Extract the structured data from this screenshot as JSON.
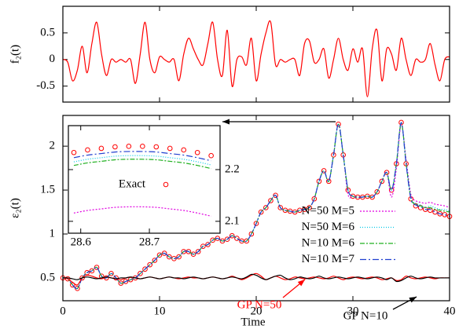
{
  "chart_data": [
    {
      "type": "line",
      "ylabel": "f₂(t)",
      "xlim": [
        0,
        40
      ],
      "ylim": [
        -0.8,
        1.0
      ],
      "yticks": [
        -0.5,
        0,
        0.5
      ],
      "x": [
        0,
        0.5,
        1,
        1.5,
        2,
        2.5,
        3,
        3.5,
        4,
        4.5,
        5,
        5.5,
        6,
        6.5,
        7,
        7.5,
        8,
        8.5,
        9,
        9.5,
        10,
        10.5,
        11,
        11.5,
        12,
        12.5,
        13,
        13.5,
        14,
        14.5,
        15,
        15.5,
        16,
        16.5,
        17,
        17.5,
        18,
        18.5,
        19,
        19.5,
        20,
        20.5,
        21,
        21.5,
        22,
        22.5,
        23,
        23.5,
        24,
        24.5,
        25,
        25.5,
        26,
        26.5,
        27,
        27.5,
        28,
        28.5,
        29,
        29.5,
        30,
        30.5,
        31,
        31.5,
        32,
        32.5,
        33,
        33.5,
        34,
        34.5,
        35,
        35.5,
        36,
        36.5,
        37,
        37.5,
        38,
        38.5,
        39,
        39.5,
        40
      ],
      "series": [
        {
          "color": "#ff0000",
          "values": [
            0,
            -0.05,
            -0.4,
            -0.2,
            0.25,
            -0.25,
            0.3,
            0.7,
            0.1,
            -0.3,
            0,
            -0.05,
            0,
            -0.05,
            0,
            -0.45,
            0.1,
            0.7,
            0,
            -0.25,
            0.05,
            0,
            -0.05,
            0,
            -0.4,
            0.1,
            0.4,
            0.2,
            0,
            -0.1,
            0.3,
            0.7,
            0,
            -0.3,
            0.55,
            -0.5,
            0,
            0.05,
            -0.1,
            0.4,
            -0.4,
            0.1,
            0.5,
            0.7,
            -0.1,
            0,
            -0.05,
            0,
            0,
            -0.3,
            0.3,
            0.35,
            -0.05,
            0,
            0.2,
            -0.35,
            0,
            0.4,
            0,
            -0.2,
            0.2,
            -0.05,
            0.2,
            -0.7,
            0.2,
            0.55,
            -0.4,
            0.2,
            0.1,
            -0.2,
            0.4,
            0,
            -0.3,
            0,
            -0.05,
            0,
            0.3,
            -0.1,
            -0.4,
            0,
            0.05
          ]
        }
      ]
    },
    {
      "type": "line",
      "xlabel": "Time",
      "ylabel": "ε₂(t)",
      "xlim": [
        0,
        40
      ],
      "ylim": [
        0.24,
        2.35
      ],
      "xticks": [
        0,
        10,
        20,
        30,
        40
      ],
      "yticks": [
        0.5,
        1,
        1.5,
        2
      ],
      "x": [
        0,
        0.5,
        1,
        1.5,
        2,
        2.5,
        3,
        3.5,
        4,
        4.5,
        5,
        5.5,
        6,
        6.5,
        7,
        7.5,
        8,
        8.5,
        9,
        9.5,
        10,
        10.5,
        11,
        11.5,
        12,
        12.5,
        13,
        13.5,
        14,
        14.5,
        15,
        15.5,
        16,
        16.5,
        17,
        17.5,
        18,
        18.5,
        19,
        19.5,
        20,
        20.5,
        21,
        21.5,
        22,
        22.5,
        23,
        23.5,
        24,
        24.5,
        25,
        25.5,
        26,
        26.5,
        27,
        27.5,
        28,
        28.5,
        29,
        29.5,
        30,
        30.5,
        31,
        31.5,
        32,
        32.5,
        33,
        33.5,
        34,
        34.5,
        35,
        35.5,
        36,
        36.5,
        37,
        37.5,
        38,
        38.5,
        39,
        39.5,
        40
      ],
      "series": [
        {
          "marker": "circle",
          "color": "#ff0000",
          "values": [
            0.5,
            0.49,
            0.42,
            0.38,
            0.5,
            0.56,
            0.58,
            0.62,
            0.52,
            0.5,
            0.55,
            0.5,
            0.44,
            0.46,
            0.48,
            0.5,
            0.55,
            0.6,
            0.65,
            0.7,
            0.76,
            0.78,
            0.74,
            0.72,
            0.74,
            0.8,
            0.8,
            0.77,
            0.8,
            0.86,
            0.88,
            0.93,
            0.95,
            0.92,
            0.94,
            0.98,
            0.95,
            0.92,
            0.92,
            1.0,
            1.12,
            1.25,
            1.3,
            1.38,
            1.44,
            1.3,
            1.27,
            1.26,
            1.25,
            1.27,
            1.28,
            1.3,
            1.4,
            1.6,
            1.72,
            1.6,
            1.9,
            2.25,
            1.9,
            1.5,
            1.43,
            1.42,
            1.42,
            1.43,
            1.42,
            1.48,
            1.6,
            1.7,
            1.5,
            1.8,
            2.27,
            1.8,
            1.4,
            1.32,
            1.3,
            1.28,
            1.27,
            1.25,
            1.23,
            1.22,
            1.2
          ]
        },
        {
          "name": "N=50 M=5",
          "color": "#e000e0",
          "dash": "2 2",
          "values": [
            0.5,
            0.49,
            0.42,
            0.38,
            0.5,
            0.56,
            0.58,
            0.62,
            0.52,
            0.5,
            0.55,
            0.5,
            0.44,
            0.46,
            0.48,
            0.5,
            0.55,
            0.6,
            0.65,
            0.7,
            0.76,
            0.78,
            0.74,
            0.72,
            0.74,
            0.8,
            0.8,
            0.77,
            0.8,
            0.86,
            0.88,
            0.93,
            0.95,
            0.92,
            0.94,
            0.98,
            0.95,
            0.92,
            0.92,
            1.0,
            1.12,
            1.25,
            1.3,
            1.38,
            1.44,
            1.3,
            1.27,
            1.26,
            1.25,
            1.27,
            1.28,
            1.3,
            1.4,
            1.6,
            1.72,
            1.6,
            1.9,
            2.25,
            1.9,
            1.45,
            1.43,
            1.42,
            1.42,
            1.43,
            1.42,
            1.48,
            1.6,
            1.7,
            1.42,
            1.75,
            2.25,
            1.85,
            1.45,
            1.38,
            1.36,
            1.35,
            1.36,
            1.34,
            1.33,
            1.32,
            1.3
          ]
        },
        {
          "name": "N=50 M=6",
          "color": "#00c8e6",
          "dash": "1 2",
          "values": [
            0.5,
            0.49,
            0.42,
            0.38,
            0.5,
            0.56,
            0.58,
            0.62,
            0.52,
            0.5,
            0.55,
            0.5,
            0.44,
            0.46,
            0.48,
            0.5,
            0.55,
            0.6,
            0.65,
            0.7,
            0.76,
            0.78,
            0.74,
            0.72,
            0.74,
            0.8,
            0.8,
            0.77,
            0.8,
            0.86,
            0.88,
            0.93,
            0.95,
            0.92,
            0.94,
            0.98,
            0.95,
            0.92,
            0.92,
            1.0,
            1.12,
            1.25,
            1.3,
            1.38,
            1.44,
            1.3,
            1.27,
            1.26,
            1.25,
            1.27,
            1.28,
            1.3,
            1.4,
            1.6,
            1.72,
            1.6,
            1.9,
            2.25,
            1.9,
            1.5,
            1.43,
            1.42,
            1.42,
            1.43,
            1.42,
            1.48,
            1.6,
            1.7,
            1.5,
            1.8,
            2.26,
            1.82,
            1.42,
            1.35,
            1.33,
            1.3,
            1.32,
            1.3,
            1.28,
            1.28,
            1.26
          ]
        },
        {
          "name": "N=10 M=6",
          "color": "#20b020",
          "dash": "6 2 2 2",
          "values": [
            0.5,
            0.49,
            0.42,
            0.38,
            0.5,
            0.56,
            0.58,
            0.62,
            0.52,
            0.5,
            0.55,
            0.5,
            0.44,
            0.46,
            0.48,
            0.5,
            0.55,
            0.6,
            0.65,
            0.7,
            0.76,
            0.78,
            0.74,
            0.72,
            0.74,
            0.8,
            0.8,
            0.77,
            0.8,
            0.86,
            0.88,
            0.93,
            0.95,
            0.92,
            0.94,
            0.98,
            0.95,
            0.92,
            0.92,
            1.0,
            1.12,
            1.25,
            1.3,
            1.38,
            1.44,
            1.3,
            1.27,
            1.26,
            1.25,
            1.27,
            1.28,
            1.3,
            1.4,
            1.6,
            1.72,
            1.6,
            1.9,
            2.25,
            1.9,
            1.5,
            1.43,
            1.42,
            1.42,
            1.43,
            1.42,
            1.48,
            1.6,
            1.7,
            1.5,
            1.8,
            2.26,
            1.81,
            1.41,
            1.34,
            1.32,
            1.3,
            1.3,
            1.28,
            1.27,
            1.26,
            1.25
          ]
        },
        {
          "name": "N=10 M=7",
          "color": "#2040d0",
          "dash": "8 3 2 3",
          "values": [
            0.5,
            0.49,
            0.42,
            0.38,
            0.5,
            0.56,
            0.58,
            0.62,
            0.52,
            0.5,
            0.55,
            0.5,
            0.44,
            0.46,
            0.48,
            0.5,
            0.55,
            0.6,
            0.65,
            0.7,
            0.76,
            0.78,
            0.74,
            0.72,
            0.74,
            0.8,
            0.8,
            0.77,
            0.8,
            0.86,
            0.88,
            0.93,
            0.95,
            0.92,
            0.94,
            0.98,
            0.95,
            0.92,
            0.92,
            1.0,
            1.12,
            1.25,
            1.3,
            1.38,
            1.44,
            1.3,
            1.27,
            1.26,
            1.25,
            1.27,
            1.28,
            1.3,
            1.4,
            1.6,
            1.72,
            1.6,
            1.9,
            2.25,
            1.9,
            1.5,
            1.43,
            1.42,
            1.42,
            1.43,
            1.42,
            1.48,
            1.6,
            1.7,
            1.5,
            1.8,
            2.27,
            1.8,
            1.4,
            1.33,
            1.31,
            1.28,
            1.28,
            1.25,
            1.23,
            1.22,
            1.2
          ]
        },
        {
          "color": "#ff0000",
          "values": [
            0.5,
            0.49,
            0.45,
            0.42,
            0.5,
            0.53,
            0.52,
            0.5,
            0.49,
            0.51,
            0.5,
            0.49,
            0.48,
            0.5,
            0.51,
            0.5,
            0.49,
            0.5,
            0.51,
            0.5,
            0.49,
            0.5,
            0.51,
            0.5,
            0.49,
            0.5,
            0.51,
            0.5,
            0.5,
            0.49,
            0.5,
            0.51,
            0.5,
            0.49,
            0.5,
            0.52,
            0.5,
            0.48,
            0.5,
            0.53,
            0.55,
            0.52,
            0.48,
            0.5,
            0.52,
            0.5,
            0.48,
            0.49,
            0.51,
            0.5,
            0.49,
            0.5,
            0.51,
            0.5,
            0.49,
            0.5,
            0.52,
            0.5,
            0.48,
            0.5,
            0.51,
            0.5,
            0.49,
            0.5,
            0.51,
            0.5,
            0.48,
            0.49,
            0.5,
            0.47,
            0.48,
            0.52,
            0.5,
            0.49,
            0.5,
            0.51,
            0.5,
            0.49,
            0.5,
            0.5,
            0.5
          ]
        },
        {
          "color": "#000000",
          "values": [
            0.5,
            0.5,
            0.49,
            0.48,
            0.5,
            0.51,
            0.5,
            0.49,
            0.5,
            0.51,
            0.5,
            0.49,
            0.5,
            0.5,
            0.51,
            0.5,
            0.49,
            0.5,
            0.51,
            0.5,
            0.49,
            0.5,
            0.51,
            0.5,
            0.5,
            0.49,
            0.5,
            0.51,
            0.5,
            0.49,
            0.5,
            0.51,
            0.5,
            0.49,
            0.5,
            0.51,
            0.5,
            0.49,
            0.51,
            0.54,
            0.53,
            0.5,
            0.48,
            0.5,
            0.52,
            0.53,
            0.5,
            0.48,
            0.49,
            0.51,
            0.5,
            0.49,
            0.5,
            0.52,
            0.5,
            0.49,
            0.5,
            0.51,
            0.5,
            0.49,
            0.5,
            0.51,
            0.5,
            0.49,
            0.5,
            0.51,
            0.5,
            0.48,
            0.5,
            0.46,
            0.47,
            0.5,
            0.52,
            0.5,
            0.49,
            0.5,
            0.51,
            0.5,
            0.5,
            0.5,
            0.5
          ]
        }
      ],
      "annotations": [
        {
          "text": "GP N=50",
          "color": "#ff0000"
        },
        {
          "text": "GP N=10",
          "color": "#000000"
        }
      ]
    },
    {
      "type": "line",
      "xlim": [
        28.582,
        28.803
      ],
      "ylim": [
        2.077,
        2.285
      ],
      "xticks": [
        28.6,
        28.7
      ],
      "yticks": [
        2.1,
        2.2
      ],
      "x": [
        28.59,
        28.61,
        28.63,
        28.65,
        28.67,
        28.69,
        28.71,
        28.73,
        28.75,
        28.77,
        28.79
      ],
      "series": [
        {
          "name": "Exact",
          "marker": "circle",
          "color": "#ff0000",
          "values": [
            2.233,
            2.238,
            2.241,
            2.244,
            2.245,
            2.245,
            2.244,
            2.241,
            2.238,
            2.233,
            2.227
          ]
        },
        {
          "color": "#2040d0",
          "dash": "8 3 2 3",
          "values": [
            2.223,
            2.228,
            2.231,
            2.234,
            2.235,
            2.235,
            2.234,
            2.231,
            2.228,
            2.223,
            2.217
          ]
        },
        {
          "color": "#00c8e6",
          "dash": "1 2",
          "values": [
            2.215,
            2.22,
            2.223,
            2.226,
            2.227,
            2.227,
            2.226,
            2.223,
            2.22,
            2.215,
            2.209
          ]
        },
        {
          "color": "#20b020",
          "dash": "6 2 2 2",
          "values": [
            2.208,
            2.213,
            2.216,
            2.219,
            2.22,
            2.22,
            2.219,
            2.216,
            2.213,
            2.208,
            2.202
          ]
        },
        {
          "color": "#e000e0",
          "dash": "2 2",
          "values": [
            2.116,
            2.121,
            2.124,
            2.127,
            2.128,
            2.128,
            2.127,
            2.124,
            2.121,
            2.116,
            2.11
          ]
        }
      ]
    }
  ]
}
